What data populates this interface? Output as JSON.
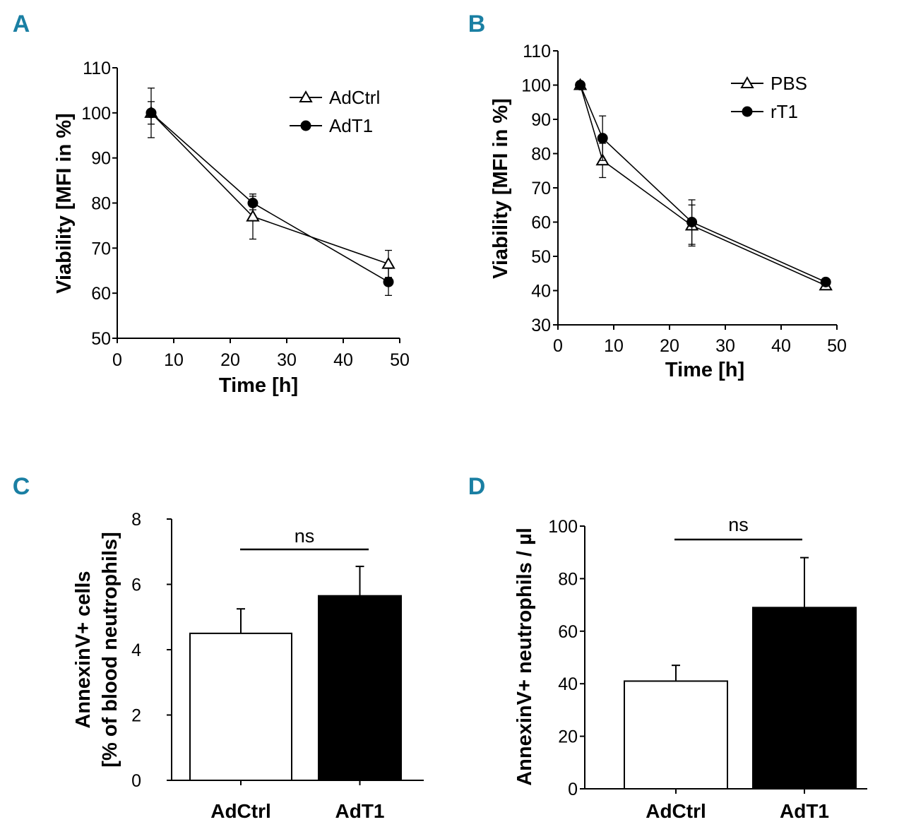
{
  "chart_data": [
    {
      "panel": "A",
      "type": "line",
      "xlabel": "Time [h]",
      "ylabel": "Viability [MFI in %]",
      "xlim": [
        0,
        50
      ],
      "ylim": [
        50,
        110
      ],
      "xticks": [
        0,
        10,
        20,
        30,
        40,
        50
      ],
      "yticks": [
        50,
        60,
        70,
        80,
        90,
        100,
        110
      ],
      "series": [
        {
          "name": "AdCtrl",
          "marker": "triangle-open",
          "x": [
            6,
            24,
            48
          ],
          "y": [
            100,
            77,
            66.5
          ],
          "err": [
            5.5,
            5,
            3
          ]
        },
        {
          "name": "AdT1",
          "marker": "circle-filled",
          "x": [
            6,
            24,
            48
          ],
          "y": [
            100,
            80,
            62.5
          ],
          "err": [
            2.5,
            1.5,
            3
          ]
        }
      ]
    },
    {
      "panel": "B",
      "type": "line",
      "xlabel": "Time [h]",
      "ylabel": "Viability [MFI in %]",
      "xlim": [
        0,
        50
      ],
      "ylim": [
        30,
        110
      ],
      "xticks": [
        0,
        10,
        20,
        30,
        40,
        50
      ],
      "yticks": [
        30,
        40,
        50,
        60,
        70,
        80,
        90,
        100,
        110
      ],
      "series": [
        {
          "name": "PBS",
          "marker": "triangle-open",
          "x": [
            4,
            8,
            24,
            48
          ],
          "y": [
            100,
            78,
            59,
            41.5
          ],
          "err": [
            1,
            5,
            6,
            1
          ]
        },
        {
          "name": "rT1",
          "marker": "circle-filled",
          "x": [
            4,
            8,
            24,
            48
          ],
          "y": [
            100,
            84.5,
            60,
            42.5
          ],
          "err": [
            1,
            6.5,
            6.5,
            1
          ]
        }
      ]
    },
    {
      "panel": "C",
      "type": "bar",
      "ylabel": [
        "AnnexinV+ cells",
        "[% of blood neutrophils]"
      ],
      "ylim": [
        0,
        8
      ],
      "yticks": [
        0,
        2,
        4,
        6,
        8
      ],
      "categories": [
        "AdCtrl",
        "AdT1"
      ],
      "values": [
        4.5,
        5.65
      ],
      "errors": [
        0.75,
        0.9
      ],
      "fills": [
        "#ffffff",
        "#000000"
      ],
      "significance": "ns"
    },
    {
      "panel": "D",
      "type": "bar",
      "ylabel": "AnnexinV+ neutrophils / µl",
      "ylim": [
        0,
        100
      ],
      "yticks": [
        0,
        20,
        40,
        60,
        80,
        100
      ],
      "categories": [
        "AdCtrl",
        "AdT1"
      ],
      "values": [
        41,
        69
      ],
      "errors": [
        6,
        19
      ],
      "fills": [
        "#ffffff",
        "#000000"
      ],
      "significance": "ns"
    }
  ],
  "colors": {
    "panel_letter": "#1a7fa3",
    "ink": "#000000"
  }
}
